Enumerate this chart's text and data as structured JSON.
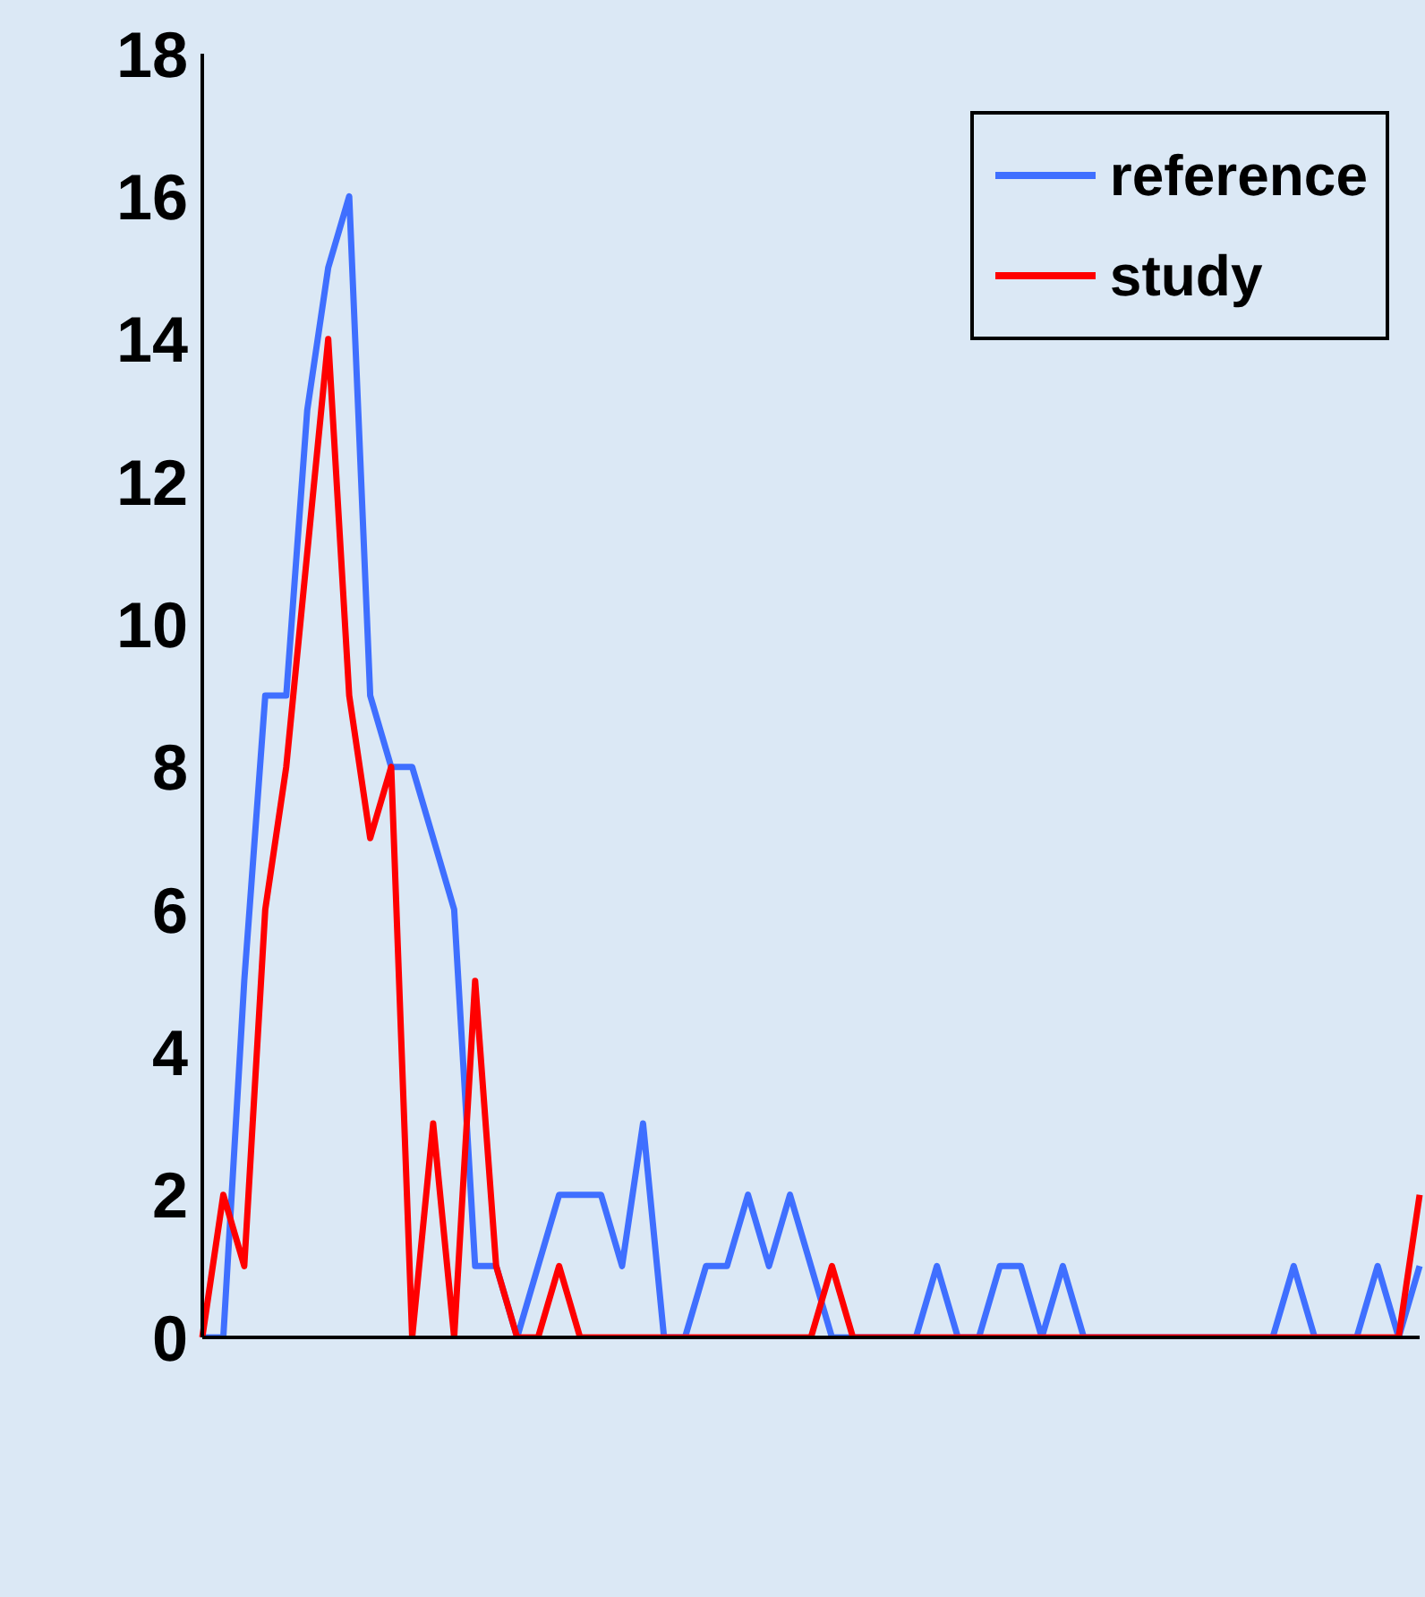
{
  "chart_data": {
    "type": "line",
    "categories": [
      null,
      null,
      null,
      null,
      null,
      null,
      null,
      null,
      null,
      null,
      null,
      null,
      null,
      null,
      null,
      null,
      null,
      null,
      null,
      null,
      null,
      null,
      null,
      null,
      null,
      null,
      null,
      null,
      null,
      null,
      null,
      null,
      null,
      null,
      null,
      null,
      null,
      null,
      null,
      null,
      null,
      null,
      null,
      null,
      null,
      null,
      null,
      null,
      null,
      null,
      null,
      null,
      null,
      null,
      null,
      null,
      null,
      null,
      null
    ],
    "series": [
      {
        "name": "reference",
        "color": "#3f6fff",
        "values": [
          0,
          0,
          5,
          9,
          9,
          13,
          15,
          16,
          9,
          8,
          8,
          7,
          6,
          1,
          1,
          0,
          1,
          2,
          2,
          2,
          1,
          3,
          0,
          0,
          1,
          1,
          2,
          1,
          2,
          1,
          0,
          0,
          0,
          0,
          0,
          1,
          0,
          0,
          1,
          1,
          0,
          1,
          0,
          0,
          0,
          0,
          0,
          0,
          0,
          0,
          0,
          0,
          1,
          0,
          0,
          0,
          1,
          0,
          1
        ]
      },
      {
        "name": "study",
        "color": "#ff0000",
        "values": [
          0,
          2,
          1,
          6,
          8,
          11,
          14,
          9,
          7,
          8,
          0,
          3,
          0,
          5,
          1,
          0,
          0,
          1,
          0,
          0,
          0,
          0,
          0,
          0,
          0,
          0,
          0,
          0,
          0,
          0,
          1,
          0,
          0,
          0,
          0,
          0,
          0,
          0,
          0,
          0,
          0,
          0,
          0,
          0,
          0,
          0,
          0,
          0,
          0,
          0,
          0,
          0,
          0,
          0,
          0,
          0,
          0,
          0,
          2
        ]
      }
    ],
    "ylim": [
      0,
      18
    ],
    "yticks": [
      0,
      2,
      4,
      6,
      8,
      10,
      12,
      14,
      16,
      18
    ],
    "tick_labels": "y",
    "legend": "top right",
    "marker": "none",
    "line_style": "solid"
  }
}
